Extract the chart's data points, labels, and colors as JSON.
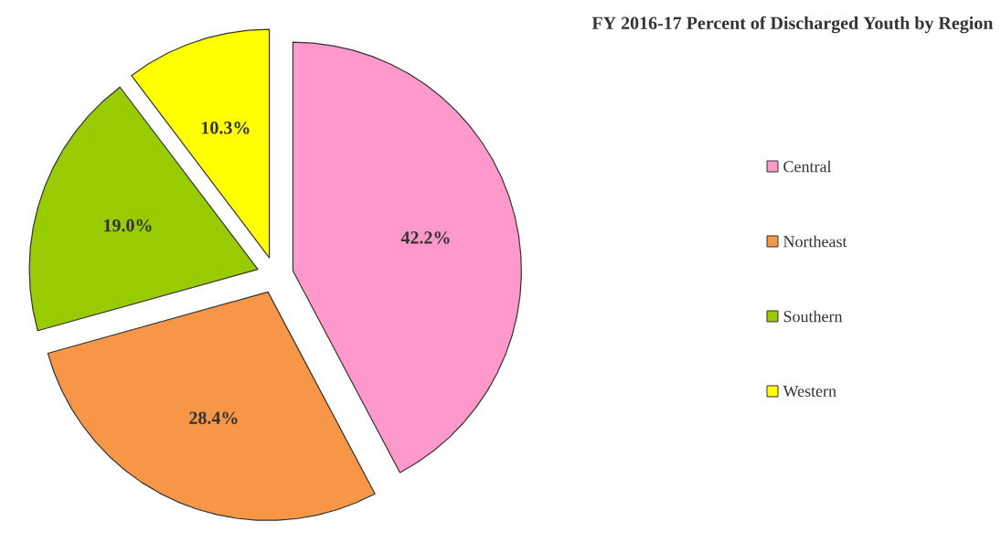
{
  "chart_data": {
    "type": "pie",
    "title": "FY 2016-17 Percent of Discharged Youth by Region",
    "categories": [
      "Central",
      "Northeast",
      "Southern",
      "Western"
    ],
    "values": [
      42.2,
      28.4,
      19.0,
      10.3
    ],
    "colors": [
      "#ff99cc",
      "#f79646",
      "#99cc00",
      "#ffff00"
    ],
    "value_labels": [
      "42.2%",
      "28.4%",
      "19.0%",
      "10.3%"
    ],
    "legend": "right"
  }
}
